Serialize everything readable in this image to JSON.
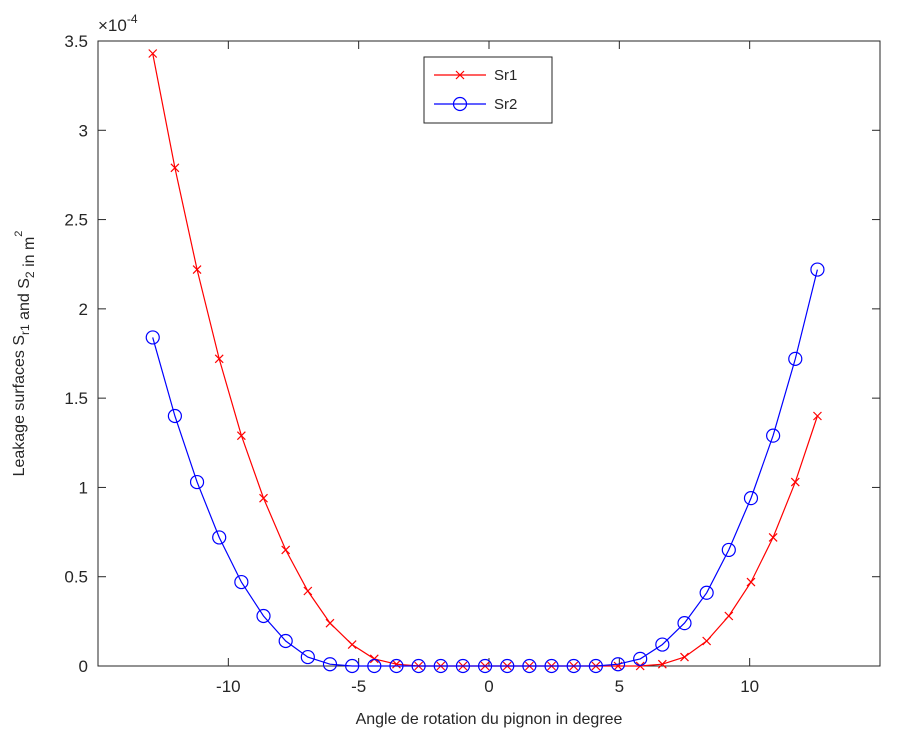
{
  "chart_data": {
    "type": "line",
    "xlabel": "Angle de rotation du pignon in degree",
    "ylabel": {
      "parts": [
        {
          "text": "Leakage surfaces S",
          "sub": false
        },
        {
          "text": "r1",
          "sub": true
        },
        {
          "text": " and S",
          "sub": false
        },
        {
          "text": "2",
          "sub": true
        },
        {
          "text": "  in  m",
          "sub": false
        },
        {
          "text": "2",
          "sup": true
        }
      ]
    },
    "exponent_label": {
      "base": "×10",
      "power": "-4"
    },
    "xlim": [
      -15,
      15
    ],
    "ylim": [
      0,
      3.5
    ],
    "xticks": [
      -10,
      -5,
      0,
      5,
      10
    ],
    "yticks": [
      0,
      0.5,
      1,
      1.5,
      2,
      2.5,
      3,
      3.5
    ],
    "ytick_labels": [
      "0",
      "0.5",
      "1",
      "1.5",
      "2",
      "2.5",
      "3",
      "3.5"
    ],
    "xtick_labels": [
      "-10",
      "-5",
      "0",
      "5",
      "10"
    ],
    "legend_position": "top-center",
    "grid": false,
    "x": [
      -12.9,
      -12.05,
      -11.2,
      -10.35,
      -9.5,
      -8.65,
      -7.8,
      -6.95,
      -6.1,
      -5.25,
      -4.4,
      -3.55,
      -2.7,
      -1.85,
      -1.0,
      -0.15,
      0.7,
      1.55,
      2.4,
      3.25,
      4.1,
      4.95,
      5.8,
      6.65,
      7.5,
      8.35,
      9.2,
      10.05,
      10.9,
      11.75,
      12.6
    ],
    "series": [
      {
        "name": "Sr1",
        "color": "#ff0000",
        "marker": "x",
        "values": [
          3.43,
          2.79,
          2.22,
          1.72,
          1.29,
          0.94,
          0.65,
          0.42,
          0.24,
          0.12,
          0.04,
          0.01,
          0.0,
          0.0,
          0.0,
          0.0,
          0.0,
          0.0,
          0.0,
          0.0,
          0.0,
          0.0,
          0.0,
          0.01,
          0.05,
          0.14,
          0.28,
          0.47,
          0.72,
          1.03,
          1.4
        ]
      },
      {
        "name": "Sr2",
        "color": "#0000ff",
        "marker": "o",
        "values": [
          1.84,
          1.4,
          1.03,
          0.72,
          0.47,
          0.28,
          0.14,
          0.05,
          0.01,
          0.0,
          0.0,
          0.0,
          0.0,
          0.0,
          0.0,
          0.0,
          0.0,
          0.0,
          0.0,
          0.0,
          0.0,
          0.01,
          0.04,
          0.12,
          0.24,
          0.41,
          0.65,
          0.94,
          1.29,
          1.72,
          2.22
        ]
      }
    ]
  }
}
